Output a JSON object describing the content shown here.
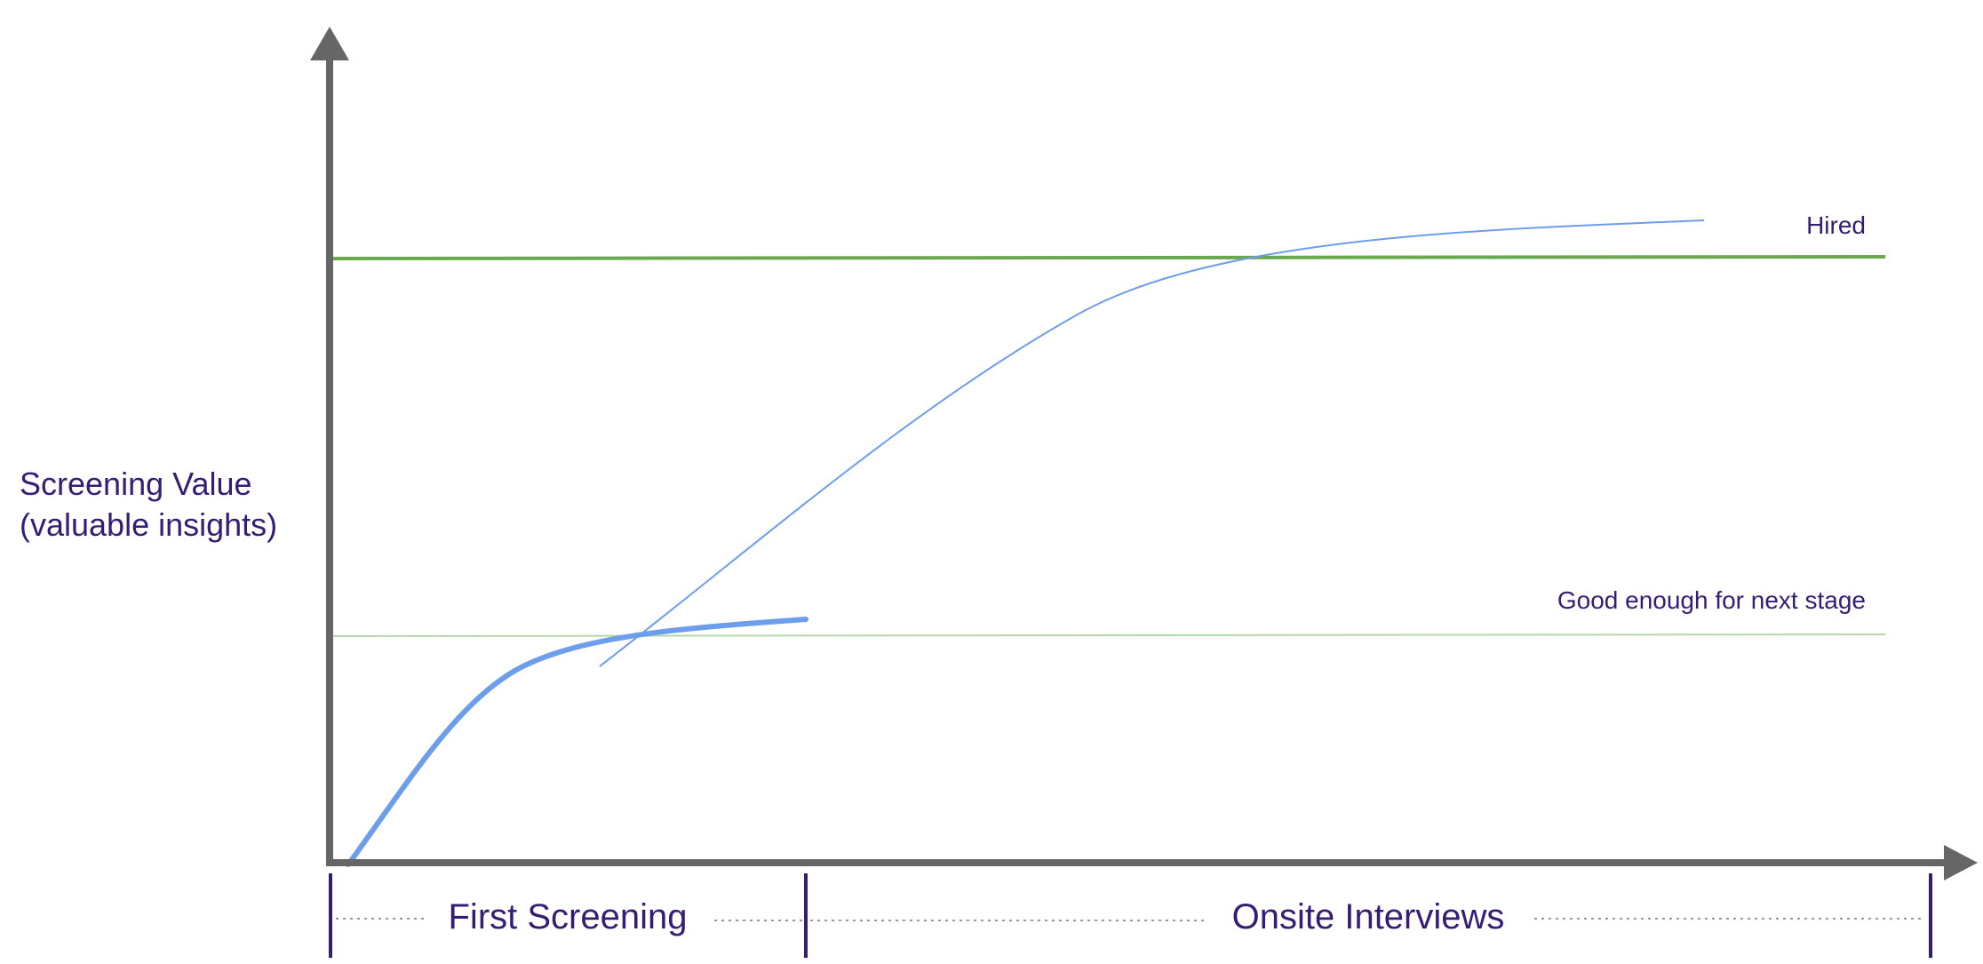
{
  "diagram": {
    "y_axis_label": {
      "line1": "Screening Value",
      "line2": "(valuable insights)"
    },
    "thresholds": [
      {
        "label": "Hired",
        "color": "#6aa84f"
      },
      {
        "label": "Good enough for next stage",
        "color": "#b6d7a8"
      }
    ],
    "stages": [
      {
        "label": "First Screening"
      },
      {
        "label": "Onsite Interviews"
      }
    ],
    "colors": {
      "axis": "#666666",
      "curve": "#6d9eeb",
      "text": "#351c75",
      "stage_divider": "#351c75",
      "dotted": "#999999"
    }
  }
}
